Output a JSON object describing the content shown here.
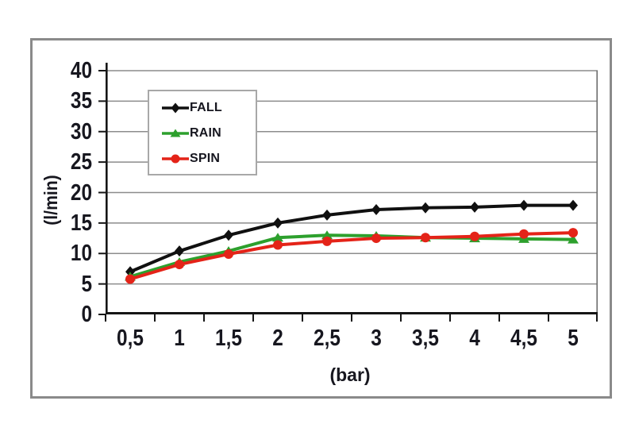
{
  "chart_data": {
    "type": "line",
    "x": [
      0.5,
      1,
      1.5,
      2,
      2.5,
      3,
      3.5,
      4,
      4.5,
      5
    ],
    "x_tick_labels": [
      "0,5",
      "1",
      "1,5",
      "2",
      "2,5",
      "3",
      "3,5",
      "4",
      "4,5",
      "5"
    ],
    "y_ticks": [
      0,
      5,
      10,
      15,
      20,
      25,
      30,
      35,
      40
    ],
    "y_tick_labels": [
      "0",
      "5",
      "10",
      "15",
      "20",
      "25",
      "30",
      "35",
      "40"
    ],
    "xlabel": "(bar)",
    "ylabel": "(l/min)",
    "ylim": [
      0,
      40
    ],
    "grid": "horizontal",
    "gridline_color": "#8c8c8c",
    "axis_color": "#151515",
    "text_color": "#17171f",
    "legend_position": "upper-left-inside",
    "series": [
      {
        "name": "FALL",
        "color": "#101010",
        "marker": "diamond",
        "values": [
          7,
          10.4,
          13,
          15,
          16.3,
          17.2,
          17.5,
          17.6,
          17.9,
          17.9
        ]
      },
      {
        "name": "RAIN",
        "color": "#2da02d",
        "marker": "triangle",
        "values": [
          6.2,
          8.6,
          10.4,
          12.6,
          13,
          12.9,
          12.6,
          12.5,
          12.4,
          12.3
        ]
      },
      {
        "name": "SPIN",
        "color": "#e42318",
        "marker": "circle",
        "values": [
          5.8,
          8.2,
          9.9,
          11.4,
          12,
          12.5,
          12.6,
          12.8,
          13.2,
          13.4
        ]
      }
    ]
  }
}
